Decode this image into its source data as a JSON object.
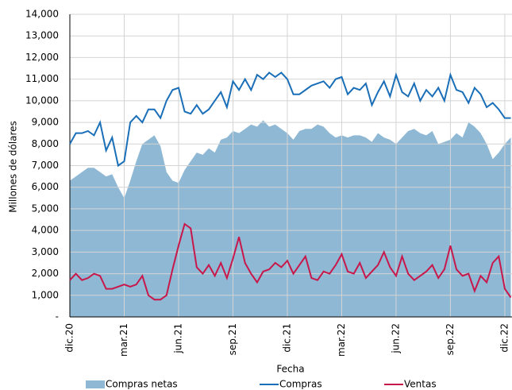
{
  "chart_data": {
    "type": "line",
    "x_label": "Fecha",
    "y_label": "Millones de dólares",
    "categories": [
      "dic.20",
      null,
      null,
      null,
      null,
      null,
      null,
      null,
      null,
      "mar.21",
      null,
      null,
      null,
      null,
      null,
      null,
      null,
      null,
      "jun.21",
      null,
      null,
      null,
      null,
      null,
      null,
      null,
      null,
      "sep.21",
      null,
      null,
      null,
      null,
      null,
      null,
      null,
      null,
      "dic.21",
      null,
      null,
      null,
      null,
      null,
      null,
      null,
      null,
      "mar.22",
      null,
      null,
      null,
      null,
      null,
      null,
      null,
      null,
      "jun.22",
      null,
      null,
      null,
      null,
      null,
      null,
      null,
      null,
      "sep.22",
      null,
      null,
      null,
      null,
      null,
      null,
      null,
      null,
      "dic.22",
      null
    ],
    "series": [
      {
        "name": "Compras netas",
        "type": "area",
        "color": "#8fb8d4",
        "values": [
          6300,
          6500,
          6700,
          6900,
          6900,
          6700,
          6500,
          6600,
          6000,
          5500,
          6300,
          7200,
          8000,
          8200,
          8400,
          7900,
          6700,
          6300,
          6200,
          6800,
          7200,
          7600,
          7500,
          7800,
          7600,
          8200,
          8300,
          8600,
          8500,
          8700,
          8900,
          8800,
          9100,
          8800,
          8900,
          8700,
          8500,
          8200,
          8600,
          8700,
          8700,
          8900,
          8800,
          8500,
          8300,
          8400,
          8300,
          8400,
          8400,
          8300,
          8100,
          8500,
          8300,
          8200,
          8000,
          8300,
          8600,
          8700,
          8500,
          8400,
          8600,
          8000,
          8100,
          8200,
          8500,
          8300,
          9000,
          8800,
          8500,
          8000,
          7300,
          7600,
          8000,
          8300
        ]
      },
      {
        "name": "Compras",
        "type": "line",
        "color": "#1a6fb8",
        "values": [
          8000,
          8500,
          8500,
          8600,
          8400,
          9000,
          7700,
          8300,
          7000,
          7200,
          9000,
          9300,
          9000,
          9600,
          9600,
          9200,
          10000,
          10500,
          10600,
          9500,
          9400,
          9800,
          9400,
          9600,
          10000,
          10400,
          9700,
          10900,
          10500,
          11000,
          10500,
          11200,
          11000,
          11300,
          11100,
          11300,
          11000,
          10300,
          10300,
          10500,
          10700,
          10800,
          10900,
          10600,
          11000,
          11100,
          10300,
          10600,
          10500,
          10800,
          9800,
          10400,
          10900,
          10200,
          11200,
          10400,
          10200,
          10800,
          10000,
          10500,
          10200,
          10600,
          10000,
          11200,
          10500,
          10400,
          9900,
          10600,
          10300,
          9700,
          9900,
          9600,
          9200,
          9200
        ]
      },
      {
        "name": "Ventas",
        "type": "line",
        "color": "#c8174a",
        "values": [
          1700,
          2000,
          1700,
          1800,
          2000,
          1900,
          1300,
          1300,
          1400,
          1500,
          1400,
          1500,
          1900,
          1000,
          800,
          800,
          1000,
          2200,
          3300,
          4300,
          4100,
          2300,
          2000,
          2400,
          1900,
          2500,
          1800,
          2700,
          3700,
          2500,
          2000,
          1600,
          2100,
          2200,
          2500,
          2300,
          2600,
          2000,
          2400,
          2800,
          1800,
          1700,
          2100,
          2000,
          2400,
          2900,
          2100,
          2000,
          2500,
          1800,
          2100,
          2400,
          3000,
          2300,
          1900,
          2800,
          2000,
          1700,
          1900,
          2100,
          2400,
          1800,
          2200,
          3300,
          2200,
          1900,
          2000,
          1200,
          1900,
          1600,
          2500,
          2800,
          1300,
          900
        ]
      }
    ],
    "ylim": [
      0,
      14000
    ],
    "yticks": [
      {
        "value": 0,
        "label": "-"
      },
      {
        "value": 1000,
        "label": "1,000"
      },
      {
        "value": 2000,
        "label": "2,000"
      },
      {
        "value": 3000,
        "label": "3,000"
      },
      {
        "value": 4000,
        "label": "4,000"
      },
      {
        "value": 5000,
        "label": "5,000"
      },
      {
        "value": 6000,
        "label": "6,000"
      },
      {
        "value": 7000,
        "label": "7,000"
      },
      {
        "value": 8000,
        "label": "8,000"
      },
      {
        "value": 9000,
        "label": "9,000"
      },
      {
        "value": 10000,
        "label": "10,000"
      },
      {
        "value": 11000,
        "label": "11,000"
      },
      {
        "value": 12000,
        "label": "12,000"
      },
      {
        "value": 13000,
        "label": "13,000"
      },
      {
        "value": 14000,
        "label": "14,000"
      }
    ],
    "grid": true
  }
}
